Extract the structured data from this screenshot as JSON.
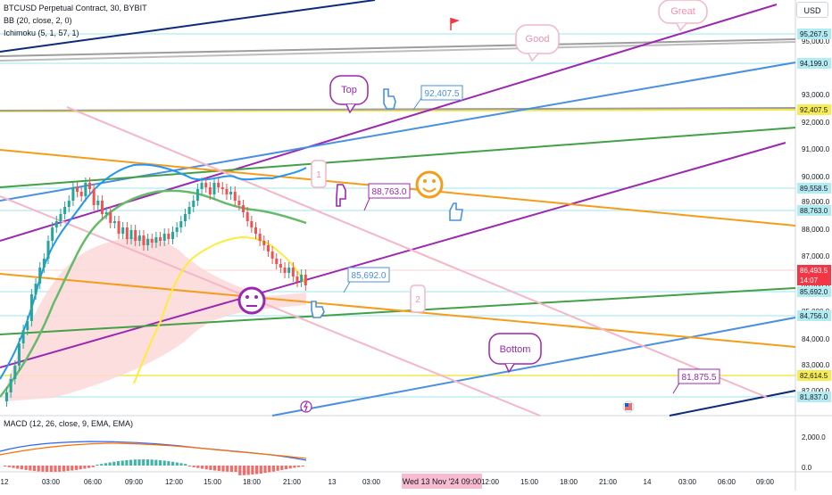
{
  "legend": {
    "symbol": "BTCUSD Perpetual Contract, 30, BYBIT",
    "bb": "BB (20, close, 2, 0)",
    "ichimoku": "Ichimoku (5, 1, 57, 1)",
    "macd": "MACD (12, 26, close, 9, EMA, EMA)"
  },
  "currency_button": "USD",
  "price_axis": {
    "ticks": [
      "95,000.0",
      "94,000.0",
      "93,000.0",
      "92,000.0",
      "91,000.0",
      "90,000.0",
      "89,000.0",
      "88,000.0",
      "87,000.0",
      "86,000.0",
      "85,000.0",
      "84,000.0",
      "83,000.0",
      "82,000.0"
    ],
    "badges": [
      {
        "label": "95,267.5",
        "color": "#b2ebf2",
        "text_color": "#131722"
      },
      {
        "label": "94,199.0",
        "color": "#b2ebf2",
        "text_color": "#131722"
      },
      {
        "label": "92,407.5",
        "color": "#f7ec55",
        "text_color": "#131722"
      },
      {
        "label": "89,558.5",
        "color": "#b2ebf2",
        "text_color": "#131722"
      },
      {
        "label": "88,763.0",
        "color": "#b2ebf2",
        "text_color": "#131722"
      },
      {
        "label": "86,493.5",
        "color": "#f23645",
        "text_color": "#ffffff"
      },
      {
        "label": "14:07",
        "color": "#f23645",
        "text_color": "#ffffff"
      },
      {
        "label": "85,692.0",
        "color": "#b2ebf2",
        "text_color": "#131722"
      },
      {
        "label": "84,756.0",
        "color": "#b2ebf2",
        "text_color": "#131722"
      },
      {
        "label": "82,614.5",
        "color": "#f7ec55",
        "text_color": "#131722"
      },
      {
        "label": "81,837.0",
        "color": "#b2ebf2",
        "text_color": "#131722"
      }
    ]
  },
  "macd_axis": {
    "ticks": [
      "2,000.0",
      "0.0"
    ]
  },
  "time_axis": {
    "ticks": [
      "12",
      "03:00",
      "06:00",
      "09:00",
      "12:00",
      "15:00",
      "18:00",
      "21:00",
      "13",
      "03:00",
      "06:00",
      "09:00",
      "12:00",
      "15:00",
      "18:00",
      "21:00",
      "14",
      "03:00",
      "06:00",
      "09:00"
    ],
    "cursor_label": "Wed 13 Nov '24  09:00"
  },
  "annotations": {
    "bubbles": [
      "Top",
      "Good",
      "Great",
      "Bottom"
    ],
    "price_labels": [
      "92,407.5",
      "88,763.0",
      "85,692.0",
      "81,875.5"
    ],
    "wave_labels": [
      "1",
      "2"
    ]
  },
  "colors": {
    "up_candle": "#26a69a",
    "down_candle": "#ef5350",
    "cloud": "#fcd8d8",
    "purple": "#9c27b0",
    "blue": "#4a90e2",
    "orange": "#f59c1a",
    "green": "#43a047",
    "pink": "#f4b6c8",
    "navy": "#0d2a7a",
    "gray": "#9e9e9e",
    "yellow": "#f4e64b"
  },
  "icons": [
    "flag-icon",
    "smiley-icon",
    "neutral-face-icon",
    "pointing-hand-icon",
    "thumbs-up-icon",
    "lightning-icon",
    "us-flag-icon"
  ]
}
